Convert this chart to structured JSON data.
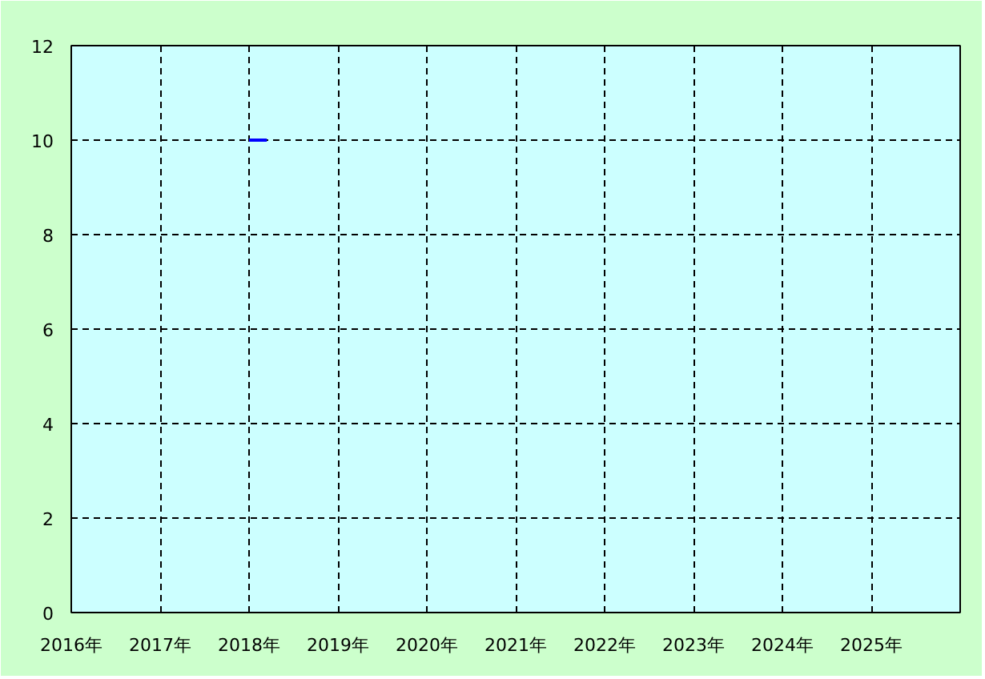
{
  "chart_data": {
    "type": "line",
    "x": [
      2018,
      2018.2
    ],
    "series": [
      {
        "color": "#0000ff",
        "values": [
          10,
          10
        ]
      }
    ],
    "xlim": [
      2016,
      2026
    ],
    "xticks": [
      {
        "value": 2016,
        "label": "2016年"
      },
      {
        "value": 2017,
        "label": "2017年"
      },
      {
        "value": 2018,
        "label": "2018年"
      },
      {
        "value": 2019,
        "label": "2019年"
      },
      {
        "value": 2020,
        "label": "2020年"
      },
      {
        "value": 2021,
        "label": "2021年"
      },
      {
        "value": 2022,
        "label": "2022年"
      },
      {
        "value": 2023,
        "label": "2023年"
      },
      {
        "value": 2024,
        "label": "2024年"
      },
      {
        "value": 2025,
        "label": "2025年"
      }
    ],
    "ylim": [
      0,
      12
    ],
    "yticks": [
      0,
      2,
      4,
      6,
      8,
      10,
      12
    ],
    "grid": true
  }
}
